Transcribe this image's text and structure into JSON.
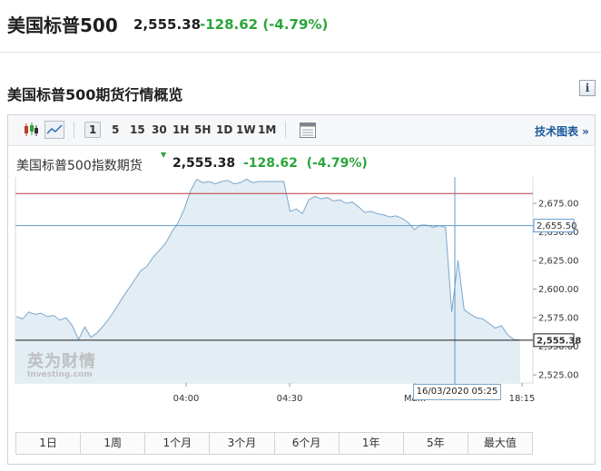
{
  "header": {
    "title": "美国标普500",
    "price": "2,555.38",
    "change": "-128.62 (-4.79%)"
  },
  "section": {
    "title": "美国标普500期货行情概览",
    "info_label": "i"
  },
  "toolbar": {
    "intervals": [
      "1",
      "5",
      "15",
      "30",
      "1H",
      "5H",
      "1D",
      "1W",
      "1M"
    ],
    "active_interval": "1",
    "tech_link": "技术图表 »"
  },
  "legend": {
    "name": "美国标普500指数期货",
    "price": "2,555.38",
    "change": "-128.62",
    "change_pct": "(-4.79%)"
  },
  "watermark": {
    "cn": "英为财情",
    "en": "Investing.com"
  },
  "tooltip": {
    "time": "16/03/2020 05:25"
  },
  "colors": {
    "up_green": "#2aa63a",
    "line_blue": "#7aa7cd",
    "area_fill": "#e3edf4",
    "red_line": "#c0393b",
    "link_blue": "#1a5a9e"
  },
  "chart_data": {
    "type": "area",
    "x_tick_labels": [
      "04:00",
      "04:30",
      "Ma...",
      "18:15"
    ],
    "y_tick_labels": [
      "2,675.00",
      "2,650.00",
      "2,625.00",
      "2,600.00",
      "2,575.00",
      "2,550.00",
      "2,525.00"
    ],
    "ylim": [
      2518,
      2698
    ],
    "price_flags": {
      "red_level_value": 2683.5,
      "crosshair_value": "2,655.50",
      "last_value": "2,555.38"
    },
    "series": [
      {
        "values": [
          2576,
          2574,
          2580,
          2578,
          2579,
          2576,
          2577,
          2573,
          2575,
          2568,
          2556,
          2567,
          2558,
          2562,
          2568,
          2575,
          2583,
          2592,
          2600,
          2608,
          2616,
          2620,
          2628,
          2634,
          2640,
          2650,
          2658,
          2670,
          2686,
          2696,
          2693,
          2694,
          2692,
          2694,
          2695,
          2692,
          2693,
          2696,
          2693,
          2694,
          2694,
          2694,
          2694,
          2694,
          2668,
          2670,
          2666,
          2678,
          2681,
          2679,
          2680,
          2677,
          2678,
          2675,
          2676,
          2672,
          2667,
          2668,
          2666,
          2665,
          2663,
          2664,
          2662,
          2658,
          2652,
          2656,
          2656,
          2654,
          2655.5,
          2654,
          2580,
          2625,
          2582,
          2578,
          2575,
          2574,
          2570,
          2566,
          2568,
          2560,
          2556,
          2555.38
        ]
      }
    ],
    "grid": false
  },
  "ranges": [
    "1日",
    "1周",
    "1个月",
    "3个月",
    "6个月",
    "1年",
    "5年",
    "最大值"
  ]
}
